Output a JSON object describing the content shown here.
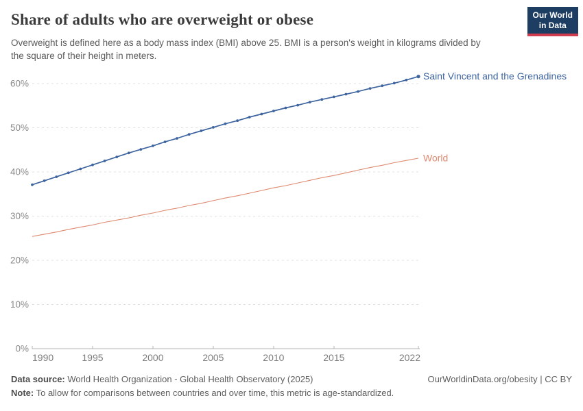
{
  "header": {
    "title": "Share of adults who are overweight or obese",
    "subtitle": "Overweight is defined here as a body mass index (BMI) above 25. BMI is a person's weight in kilograms divided by the square of their height in meters.",
    "logo": {
      "line1": "Our World",
      "line2": "in Data",
      "bg_color": "#1d3d63",
      "accent_color": "#d13d4e"
    }
  },
  "chart_data": {
    "type": "line",
    "title": "Share of adults who are overweight or obese",
    "xlabel": "",
    "ylabel": "",
    "xlim": [
      1990,
      2022
    ],
    "ylim": [
      0,
      60
    ],
    "grid": "horizontal-dashed",
    "legend_position": "right-of-line-end-labels",
    "x": [
      1990,
      1991,
      1992,
      1993,
      1994,
      1995,
      1996,
      1997,
      1998,
      1999,
      2000,
      2001,
      2002,
      2003,
      2004,
      2005,
      2006,
      2007,
      2008,
      2009,
      2010,
      2011,
      2012,
      2013,
      2014,
      2015,
      2016,
      2017,
      2018,
      2019,
      2020,
      2021,
      2022
    ],
    "xticks": [
      1990,
      1995,
      2000,
      2005,
      2010,
      2015,
      2022
    ],
    "yticks": [
      0,
      10,
      20,
      30,
      40,
      50,
      60
    ],
    "ytick_suffix": "%",
    "series": [
      {
        "name": "Saint Vincent and the Grenadines",
        "color": "#3d649f",
        "marker": true,
        "values": [
          37.1,
          38.0,
          38.9,
          39.8,
          40.7,
          41.6,
          42.5,
          43.4,
          44.3,
          45.1,
          45.9,
          46.8,
          47.6,
          48.5,
          49.3,
          50.1,
          50.9,
          51.6,
          52.4,
          53.1,
          53.8,
          54.5,
          55.1,
          55.8,
          56.4,
          57.0,
          57.6,
          58.2,
          58.9,
          59.5,
          60.1,
          60.8,
          61.6
        ]
      },
      {
        "name": "World",
        "color": "#de8a70",
        "marker": false,
        "values": [
          25.4,
          25.9,
          26.4,
          27.0,
          27.5,
          28.0,
          28.6,
          29.1,
          29.6,
          30.2,
          30.7,
          31.3,
          31.8,
          32.4,
          32.9,
          33.5,
          34.1,
          34.6,
          35.2,
          35.8,
          36.4,
          36.9,
          37.5,
          38.1,
          38.7,
          39.2,
          39.8,
          40.4,
          41.0,
          41.5,
          42.1,
          42.6,
          43.1
        ]
      }
    ]
  },
  "colors": {
    "grid": "#e0e0e0",
    "axis": "#b3b3b3",
    "y_tick_label": "#8a8a8a",
    "x_tick_label": "#7c7c7c"
  },
  "footer": {
    "data_source_label": "Data source:",
    "data_source_text": " World Health Organization - Global Health Observatory (2025)",
    "note_label": "Note:",
    "note_text": " To allow for comparisons between countries and over time, this metric is age-standardized.",
    "link_text": "OurWorldinData.org/obesity | CC BY"
  }
}
